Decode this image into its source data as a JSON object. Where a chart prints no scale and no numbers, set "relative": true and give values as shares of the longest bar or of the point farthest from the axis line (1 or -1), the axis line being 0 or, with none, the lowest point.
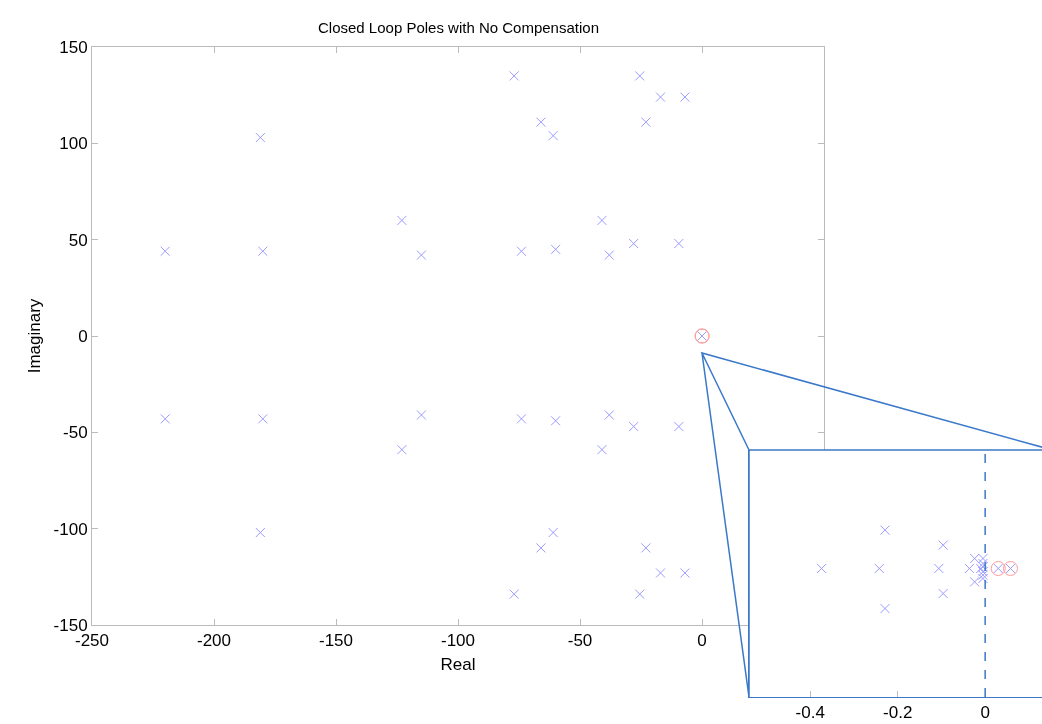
{
  "chart_data": [
    {
      "type": "scatter",
      "title": "Closed Loop Poles with No Compensation",
      "xlabel": "Real",
      "ylabel": "Imaginary",
      "xlim": [
        -250,
        50
      ],
      "xticks": [
        -250,
        -200,
        -150,
        -100,
        -50,
        0
      ],
      "ylim": [
        -150,
        150
      ],
      "yticks": [
        -150,
        -100,
        -50,
        0,
        50,
        100,
        150
      ],
      "series": [
        {
          "color": "#9c9cff",
          "marker": "cross",
          "x": [
            -220,
            -220,
            -181,
            -181,
            -180,
            -180,
            -123,
            -123,
            -115,
            -115,
            -77,
            -77,
            -25.5,
            -25.5,
            -17,
            -17,
            -7,
            -7,
            -66,
            -66,
            -61,
            -61,
            -23,
            -23,
            -41,
            -41,
            -74,
            -74,
            -60,
            -60,
            -38,
            -38,
            -28,
            -28,
            -9.5,
            -9.5,
            0
          ],
          "values": [
            44,
            -43,
            103,
            -102,
            44,
            -43,
            60,
            -59,
            42,
            -41,
            135,
            -134,
            135,
            -134,
            124,
            -123,
            124,
            -123,
            111,
            -110,
            104,
            -102,
            111,
            -110,
            60,
            -59,
            44,
            -43,
            45,
            -44,
            42,
            -41,
            48,
            -47,
            48,
            -47,
            0
          ]
        },
        {
          "color": "#ff9c9c",
          "marker": "circle",
          "x": [
            0.03,
            0.058
          ],
          "values": [
            0,
            0
          ]
        }
      ]
    },
    {
      "type": "scatter",
      "relative": true,
      "tick_labels": "x",
      "xlim": [
        -0.54,
        0.13
      ],
      "xticks": [
        -0.4,
        -0.2,
        0
      ],
      "ref_lines": [
        {
          "axis": "x",
          "value": 0,
          "color": "#3a78c9",
          "line_style": "dashed"
        }
      ],
      "series": [
        {
          "color": "#9c9cff",
          "marker": "cross",
          "x": [
            -0.374,
            -0.242,
            -0.229,
            -0.229,
            -0.106,
            -0.096,
            -0.096,
            -0.036,
            -0.024,
            -0.024,
            -0.01,
            -0.005,
            -0.005,
            -0.005,
            -0.005,
            -0.005,
            -0.005,
            0.03,
            0.058
          ],
          "values": [
            0.77,
            0.77,
            1,
            0.53,
            0.77,
            0.91,
            0.62,
            0.77,
            0.83,
            0.69,
            0.77,
            0.83,
            0.8,
            0.78,
            0.75,
            0.73,
            0.71,
            0.77,
            0.77
          ]
        },
        {
          "color": "#ff9c9c",
          "marker": "circle",
          "x": [
            0.03,
            0.058
          ],
          "values": [
            0.77,
            0.77
          ]
        }
      ]
    }
  ]
}
